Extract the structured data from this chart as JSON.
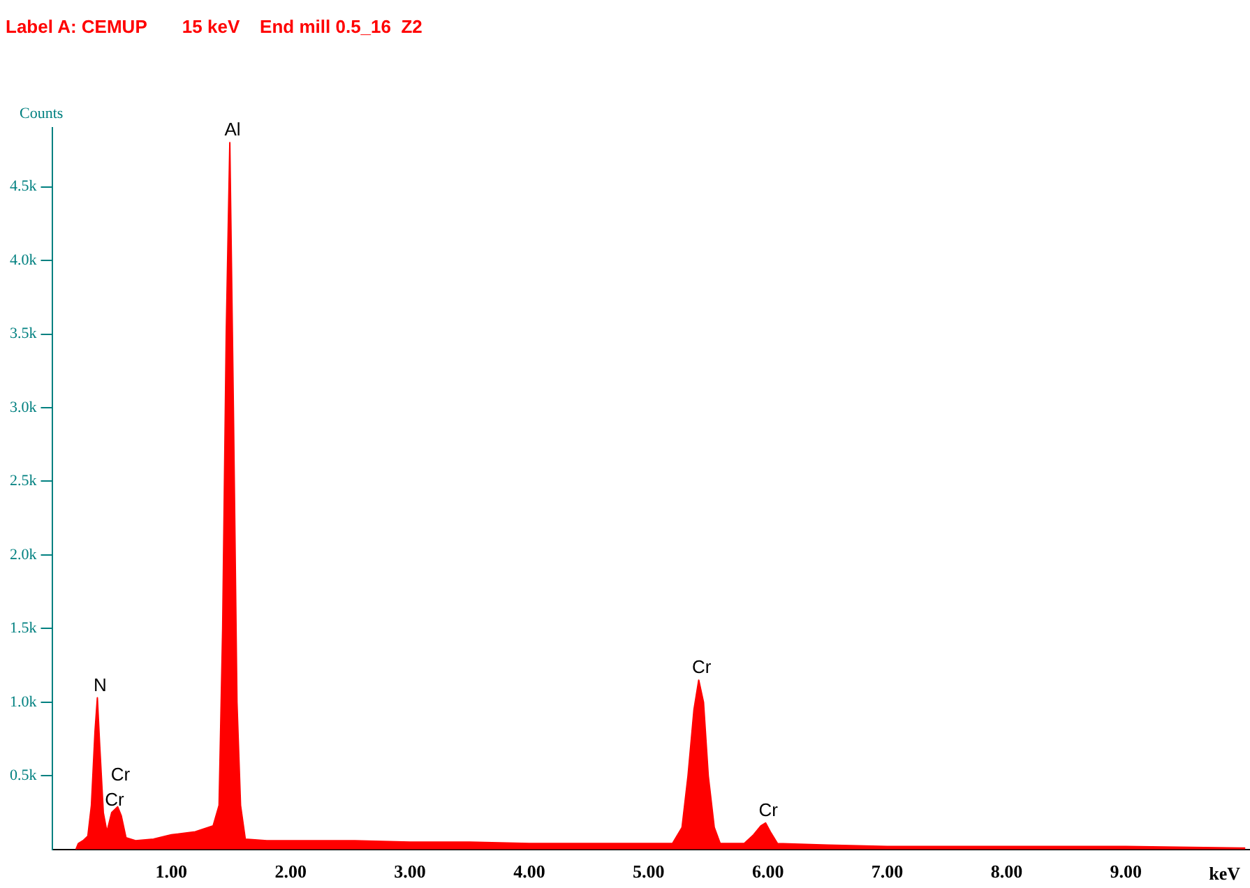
{
  "chart_data": {
    "type": "area",
    "title": "Label A: CEMUP       15 keV    End mill 0.5_16  Z2",
    "xlabel": "keV",
    "ylabel": "Counts",
    "xlim": [
      0,
      10.04
    ],
    "ylim": [
      0,
      4900
    ],
    "xticks": [
      {
        "value": 1,
        "label": "1.00"
      },
      {
        "value": 2,
        "label": "2.00"
      },
      {
        "value": 3,
        "label": "3.00"
      },
      {
        "value": 4,
        "label": "4.00"
      },
      {
        "value": 5,
        "label": "5.00"
      },
      {
        "value": 6,
        "label": "6.00"
      },
      {
        "value": 7,
        "label": "7.00"
      },
      {
        "value": 8,
        "label": "8.00"
      },
      {
        "value": 9,
        "label": "9.00"
      }
    ],
    "yticks": [
      {
        "value": 500,
        "label": "0.5k"
      },
      {
        "value": 1000,
        "label": "1.0k"
      },
      {
        "value": 1500,
        "label": "1.5k"
      },
      {
        "value": 2000,
        "label": "2.0k"
      },
      {
        "value": 2500,
        "label": "2.5k"
      },
      {
        "value": 3000,
        "label": "3.0k"
      },
      {
        "value": 3500,
        "label": "3.5k"
      },
      {
        "value": 4000,
        "label": "4.0k"
      },
      {
        "value": 4500,
        "label": "4.5k"
      }
    ],
    "grid": false,
    "legend": false,
    "series": [
      {
        "color": "#ff0000",
        "x": [
          0.2,
          0.22,
          0.26,
          0.3,
          0.33,
          0.36,
          0.38,
          0.4,
          0.43,
          0.46,
          0.5,
          0.55,
          0.58,
          0.62,
          0.7,
          0.85,
          1.0,
          1.2,
          1.35,
          1.4,
          1.43,
          1.46,
          1.49,
          1.52,
          1.55,
          1.58,
          1.62,
          1.8,
          2.0,
          2.5,
          3.0,
          3.5,
          4.0,
          4.5,
          5.0,
          5.2,
          5.28,
          5.33,
          5.38,
          5.42,
          5.46,
          5.5,
          5.55,
          5.6,
          5.8,
          5.88,
          5.94,
          5.98,
          6.02,
          6.08,
          6.5,
          7.0,
          8.0,
          9.0,
          10.0
        ],
        "values": [
          0,
          40,
          60,
          90,
          300,
          800,
          1030,
          700,
          250,
          120,
          250,
          290,
          230,
          80,
          60,
          70,
          100,
          120,
          160,
          300,
          1500,
          3500,
          4800,
          3000,
          1000,
          300,
          70,
          60,
          60,
          60,
          50,
          50,
          40,
          40,
          40,
          40,
          150,
          500,
          950,
          1150,
          1000,
          500,
          150,
          40,
          40,
          100,
          160,
          180,
          120,
          40,
          30,
          20,
          20,
          20,
          10
        ]
      }
    ],
    "annotations": [
      {
        "text": "N",
        "x": 0.38,
        "y": 1030
      },
      {
        "text": "Cr",
        "x": 0.5,
        "y": 250
      },
      {
        "text": "Cr",
        "x": 0.55,
        "y": 290
      },
      {
        "text": "Al",
        "x": 1.49,
        "y": 4800
      },
      {
        "text": "Cr",
        "x": 5.42,
        "y": 1150
      },
      {
        "text": "Cr",
        "x": 5.98,
        "y": 180
      }
    ]
  }
}
